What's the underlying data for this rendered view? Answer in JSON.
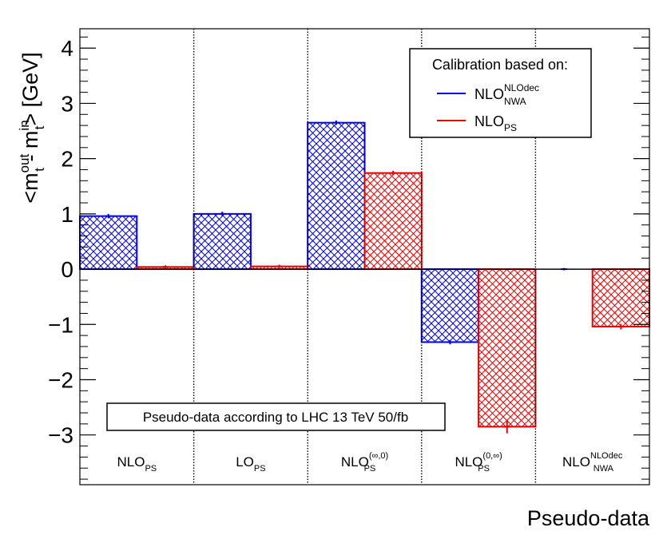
{
  "chart_data": {
    "type": "bar",
    "title": "",
    "xlabel": "Pseudo-data",
    "ylabel": {
      "prefix": "<m",
      "sup1": "out",
      "sub1": "t",
      "mid": " - m",
      "sup2": "in",
      "sub2": "t",
      "suffix": "> [GeV]"
    },
    "ylim": [
      -3.9,
      4.35
    ],
    "yticks": [
      -3,
      -2,
      -1,
      0,
      1,
      2,
      3,
      4
    ],
    "ytick_labels": [
      "−3",
      "−2",
      "−1",
      "0",
      "1",
      "2",
      "3",
      "4"
    ],
    "grid": false,
    "categories": [
      {
        "main": "NLO",
        "sub": "PS",
        "sup": ""
      },
      {
        "main": "LO",
        "sub": "PS",
        "sup": ""
      },
      {
        "main": "NLO",
        "sub": "PS",
        "sup": "(∞,0)"
      },
      {
        "main": "NLO",
        "sub": "PS",
        "sup": "(0,∞)"
      },
      {
        "main": "NLO",
        "sub": "NWA",
        "sup": "NLOdec"
      }
    ],
    "series": [
      {
        "name": {
          "main": "NLO",
          "sub": "NWA",
          "sup": "NLOdec"
        },
        "color": "#0000ee",
        "values": [
          0.96,
          1.0,
          2.65,
          -1.32,
          0.0
        ],
        "errors": [
          0.04,
          0.04,
          0.04,
          0.04,
          0.02
        ]
      },
      {
        "name": {
          "main": "NLO",
          "sub": "PS",
          "sup": ""
        },
        "color": "#ee0000",
        "values": [
          0.04,
          0.05,
          1.74,
          -2.85,
          -1.04
        ],
        "errors": [
          0.03,
          0.03,
          0.04,
          0.12,
          0.05
        ]
      }
    ],
    "legend": {
      "title": "Calibration based on:",
      "placement": "top-right"
    },
    "annotation": "Pseudo-data according to LHC 13 TeV 50/fb"
  }
}
